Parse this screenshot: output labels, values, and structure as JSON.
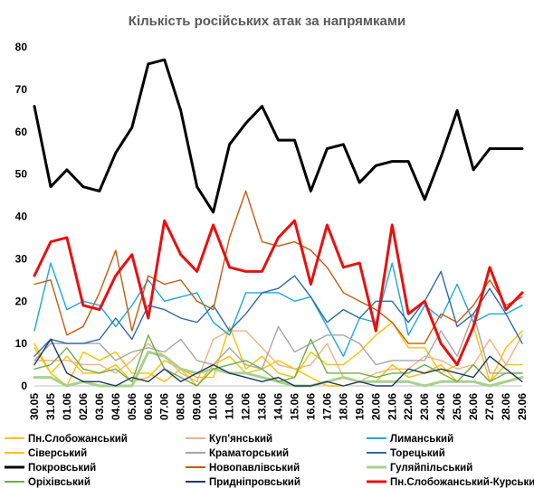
{
  "chart_data": {
    "type": "line",
    "title": "Кількість російських атак за напрямками",
    "xlabel": "",
    "ylabel": "",
    "ylim": [
      0,
      80
    ],
    "yticks": [
      "0",
      "10",
      "20",
      "30",
      "40",
      "50",
      "60",
      "70",
      "80"
    ],
    "grid": false,
    "legend_position": "bottom",
    "categories": [
      "30.05",
      "31.05",
      "01.06",
      "02.06",
      "03.06",
      "04.06",
      "05.06",
      "06.06",
      "07.06",
      "08.06",
      "09.06",
      "10.06",
      "11.06",
      "12.06",
      "13.06",
      "14.06",
      "15.06",
      "16.06",
      "17.06",
      "18.06",
      "19.06",
      "20.06",
      "21.06",
      "22.06",
      "23.06",
      "24.06",
      "25.06",
      "26.06",
      "27.06",
      "28.06",
      "29.06"
    ],
    "series": [
      {
        "name": "Пн.Слобожанський",
        "color": "#FFC000",
        "width": 1.4,
        "values": [
          10,
          3,
          7,
          3,
          3,
          5,
          1,
          2,
          6,
          4,
          2,
          2,
          14,
          4,
          7,
          3,
          2,
          8,
          5,
          5,
          8,
          12,
          15,
          9,
          9,
          3,
          5,
          14,
          1,
          9,
          13
        ]
      },
      {
        "name": "Куп'янський",
        "color": "#F4B183",
        "width": 1.4,
        "values": [
          6,
          6,
          6,
          5,
          5,
          3,
          6,
          10,
          7,
          3,
          1,
          11,
          13,
          13,
          9,
          5,
          4,
          5,
          10,
          2,
          1,
          3,
          4,
          4,
          7,
          6,
          4,
          5,
          11,
          5,
          12
        ]
      },
      {
        "name": "Лиманський",
        "color": "#1CA6E0",
        "width": 1.4,
        "values": [
          13,
          29,
          18,
          20,
          19,
          14,
          19,
          25,
          20,
          21,
          22,
          15,
          12,
          22,
          22,
          22,
          20,
          21,
          14,
          7,
          16,
          15,
          29,
          12,
          19,
          16,
          24,
          15,
          17,
          17,
          19
        ]
      },
      {
        "name": "Сіверський",
        "color": "#FFC000",
        "width": 1.4,
        "values": [
          9,
          3,
          0,
          8,
          6,
          8,
          3,
          3,
          1,
          4,
          0,
          5,
          7,
          3,
          4,
          6,
          4,
          2,
          0,
          0,
          1,
          1,
          5,
          2,
          3,
          5,
          1,
          5,
          1,
          5,
          5
        ]
      },
      {
        "name": "Краматорський",
        "color": "#A6A6A6",
        "width": 1.4,
        "values": [
          6,
          10,
          10,
          10,
          10,
          6,
          8,
          9,
          8,
          11,
          6,
          5,
          9,
          5,
          4,
          14,
          8,
          10,
          12,
          12,
          10,
          5,
          6,
          6,
          6,
          13,
          7,
          17,
          3,
          3,
          3
        ]
      },
      {
        "name": "Торецький",
        "color": "#2E6BA6",
        "width": 1.4,
        "values": [
          7,
          11,
          10,
          10,
          11,
          16,
          11,
          19,
          18,
          16,
          15,
          19,
          13,
          17,
          22,
          23,
          26,
          21,
          15,
          18,
          16,
          20,
          20,
          15,
          20,
          27,
          14,
          17,
          23,
          17,
          10
        ]
      },
      {
        "name": "Покровський",
        "color": "#000000",
        "width": 3.0,
        "values": [
          66,
          47,
          51,
          47,
          46,
          55,
          61,
          76,
          77,
          65,
          47,
          41,
          57,
          62,
          66,
          58,
          58,
          46,
          56,
          57,
          48,
          52,
          53,
          53,
          44,
          54,
          65,
          51,
          56,
          56,
          56
        ]
      },
      {
        "name": "Новопавлівський",
        "color": "#C55A11",
        "width": 1.4,
        "values": [
          24,
          25,
          12,
          14,
          22,
          32,
          13,
          26,
          24,
          25,
          20,
          18,
          35,
          46,
          34,
          33,
          34,
          32,
          28,
          22,
          20,
          18,
          15,
          10,
          10,
          17,
          15,
          19,
          25,
          19,
          21
        ]
      },
      {
        "name": "Гуляйпільський",
        "color": "#A9D18E",
        "width": 3.0,
        "values": [
          2,
          2,
          0,
          1,
          0,
          0,
          0,
          8,
          7,
          4,
          3,
          4,
          3,
          3,
          2,
          1,
          0,
          0,
          1,
          2,
          1,
          1,
          1,
          1,
          0,
          1,
          1,
          1,
          0,
          1,
          2
        ]
      },
      {
        "name": "Оріхівський",
        "color": "#70AD47",
        "width": 1.4,
        "values": [
          4,
          5,
          9,
          4,
          3,
          4,
          1,
          12,
          4,
          2,
          0,
          4,
          5,
          6,
          4,
          1,
          2,
          11,
          3,
          3,
          3,
          2,
          3,
          3,
          5,
          3,
          1,
          5,
          1,
          3,
          3
        ]
      },
      {
        "name": "Придніпровський",
        "color": "#203864",
        "width": 1.4,
        "values": [
          5,
          11,
          3,
          1,
          1,
          0,
          2,
          1,
          4,
          1,
          3,
          5,
          3,
          2,
          1,
          2,
          0,
          0,
          1,
          0,
          1,
          0,
          0,
          4,
          3,
          4,
          3,
          2,
          7,
          4,
          1
        ]
      },
      {
        "name": "Пн.Слобожанський-Курський",
        "color": "#E81010",
        "width": 3.0,
        "values": [
          26,
          34,
          35,
          19,
          18,
          26,
          31,
          16,
          39,
          31,
          27,
          38,
          28,
          27,
          27,
          35,
          39,
          24,
          38,
          28,
          29,
          13,
          38,
          17,
          20,
          10,
          5,
          14,
          28,
          18,
          22
        ]
      }
    ]
  }
}
